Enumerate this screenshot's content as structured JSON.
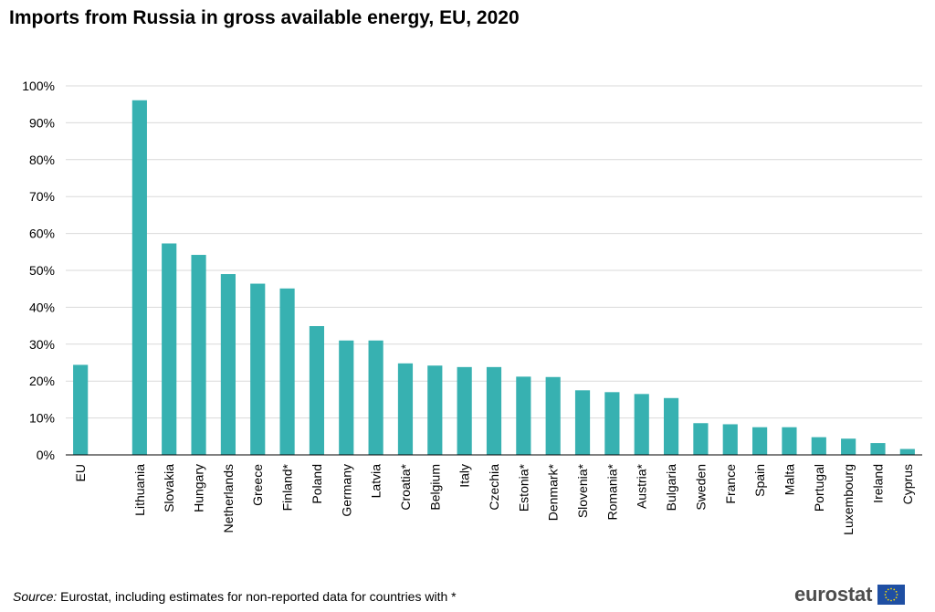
{
  "colors": {
    "bar": "#37b1b1",
    "grid": "#d9d9d9",
    "axis": "#000000"
  },
  "source": {
    "label": "Source:",
    "text": "Eurostat, including estimates for non-reported data for countries with *"
  },
  "logo": {
    "text": "eurostat"
  },
  "chart_data": {
    "type": "bar",
    "title": "Imports from Russia in gross available energy, EU, 2020",
    "xlabel": "",
    "ylabel": "",
    "ylim": [
      0,
      100
    ],
    "yticks": [
      "0%",
      "10%",
      "20%",
      "30%",
      "40%",
      "50%",
      "60%",
      "70%",
      "80%",
      "90%",
      "100%"
    ],
    "grid": true,
    "categories": [
      "EU",
      "",
      "Lithuania",
      "Slovakia",
      "Hungary",
      "Netherlands",
      "Greece",
      "Finland*",
      "Poland",
      "Germany",
      "Latvia",
      "Croatia*",
      "Belgium",
      "Italy",
      "Czechia",
      "Estonia*",
      "Denmark*",
      "Slovenia*",
      "Romania*",
      "Austria*",
      "Bulgaria",
      "Sweden",
      "France",
      "Spain",
      "Malta",
      "Portugal",
      "Luxembourg",
      "Ireland",
      "Cyprus"
    ],
    "values": [
      24.4,
      null,
      96.1,
      57.3,
      54.2,
      49.0,
      46.4,
      45.1,
      34.9,
      31.0,
      31.0,
      24.8,
      24.2,
      23.8,
      23.8,
      21.2,
      21.1,
      17.5,
      17.0,
      16.5,
      15.4,
      8.6,
      8.3,
      7.5,
      7.5,
      4.8,
      4.4,
      3.2,
      1.6
    ]
  }
}
